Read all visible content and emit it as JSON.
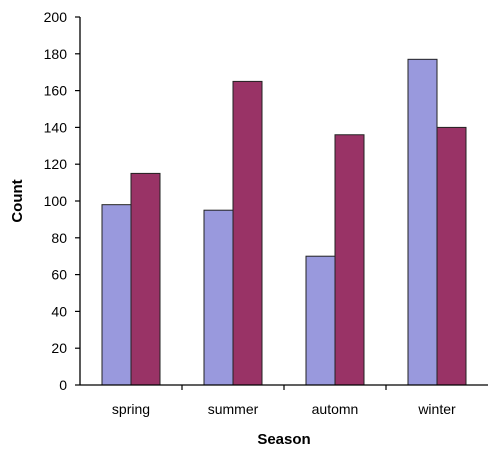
{
  "chart_data": {
    "type": "bar",
    "title": "",
    "xlabel": "Season",
    "ylabel": "Count",
    "categories": [
      "spring",
      "summer",
      "automn",
      "winter"
    ],
    "series": [
      {
        "values": [
          98,
          95,
          70,
          177
        ],
        "color": "#9999dd"
      },
      {
        "values": [
          115,
          165,
          136,
          140
        ],
        "color": "#993366"
      }
    ],
    "ylim": [
      0,
      200
    ],
    "yticks": [
      0,
      20,
      40,
      60,
      80,
      100,
      120,
      140,
      160,
      180,
      200
    ],
    "grid": false,
    "legend": "none"
  }
}
